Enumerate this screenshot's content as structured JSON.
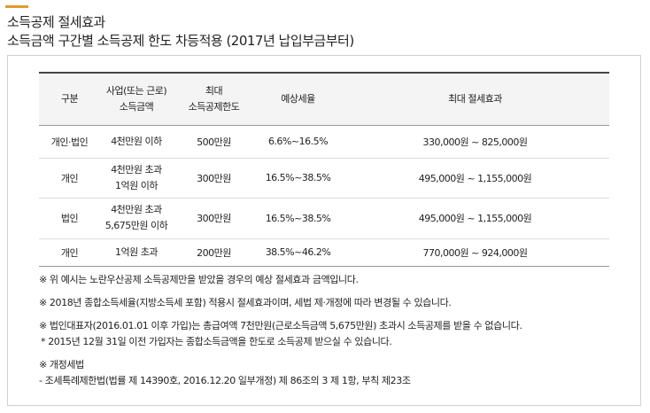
{
  "heading": {
    "title_line1": "소득공제 절세효과",
    "title_line2": "소득금액 구간별 소득공제 한도 차등적용 (2017년 납입부금부터)"
  },
  "table": {
    "headers": {
      "col1": "구분",
      "col2_line1": "사업(또는 근로)",
      "col2_line2": "소득금액",
      "col3_line1": "최대",
      "col3_line2": "소득공제한도",
      "col4": "예상세율",
      "col5": "최대 절세효과"
    },
    "rows": [
      {
        "category": "개인·법인",
        "income_line1": "4천만원 이하",
        "income_line2": "",
        "limit": "500만원",
        "tax_rate": "6.6%~16.5%",
        "effect": "330,000원 ~ 825,000원"
      },
      {
        "category": "개인",
        "income_line1": "4천만원 초과",
        "income_line2": "1억원 이하",
        "limit": "300만원",
        "tax_rate": "16.5%~38.5%",
        "effect": "495,000원 ~ 1,155,000원"
      },
      {
        "category": "법인",
        "income_line1": "4천만원 초과",
        "income_line2": "5,675만원 이하",
        "limit": "300만원",
        "tax_rate": "16.5%~38.5%",
        "effect": "495,000원 ~ 1,155,000원"
      },
      {
        "category": "개인",
        "income_line1": "1억원 초과",
        "income_line2": "",
        "limit": "200만원",
        "tax_rate": "38.5%~46.2%",
        "effect": "770,000원 ~ 924,000원"
      }
    ]
  },
  "notes": {
    "note1": "※ 위 예시는 노란우산공제 소득공제만을 받았을 경우의 예상 절세효과 금액입니다.",
    "note2": "※ 2018년 종합소득세율(지방소득세 포함) 적용시 절세효과이며, 세법 제·개정에 따라 변경될 수 있습니다.",
    "note3": "※ 법인대표자(2016.01.01 이후 가입)는 총급여액 7천만원(근로소득금액 5,675만원) 초과시 소득공제를 받을 수 없습니다.",
    "note3_sub": "* 2015년 12월 31일 이전 가입자는 종합소득금액을 한도로 소득공제 받으실 수 있습니다.",
    "note4_title": "※ 개정세법",
    "note4_body": "- 조세특례제한법(법률 제 14390호, 2016.12.20 일부개정) 제 86조의 3 제 1항, 부칙 제23조"
  },
  "colors": {
    "accent": "#e39a2b",
    "header_bg": "#f4f4f4",
    "border": "#cfcfcf"
  }
}
